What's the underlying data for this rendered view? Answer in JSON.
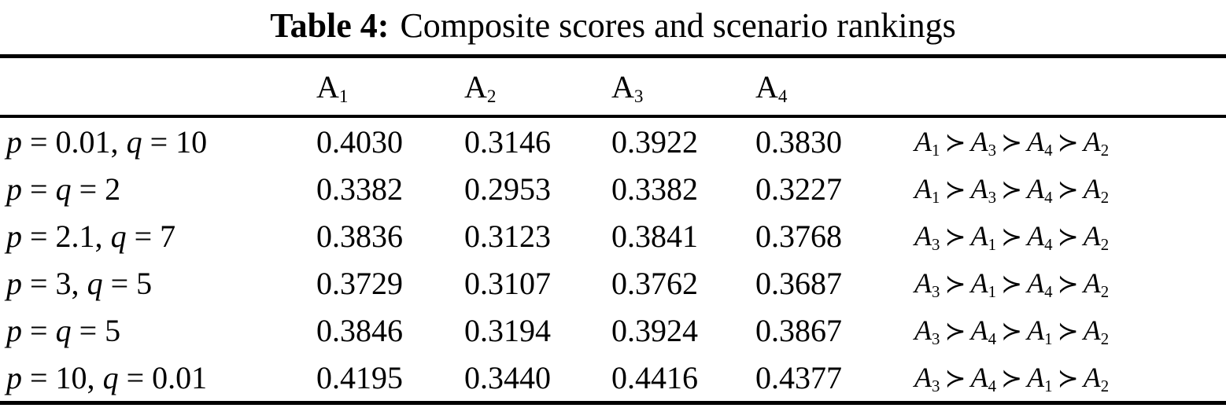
{
  "table": {
    "title_bold": "Table 4:",
    "title_rest": "Composite scores and scenario rankings",
    "succ_symbol": "≻",
    "columns": [
      "A1",
      "A2",
      "A3",
      "A4"
    ],
    "rows": [
      {
        "scenario": "p = 0.01, q = 10",
        "values": [
          "0.4030",
          "0.3146",
          "0.3922",
          "0.3830"
        ],
        "ranking": [
          "A1",
          "A3",
          "A4",
          "A2"
        ]
      },
      {
        "scenario": "p = q = 2",
        "values": [
          "0.3382",
          "0.2953",
          "0.3382",
          "0.3227"
        ],
        "ranking": [
          "A1",
          "A3",
          "A4",
          "A2"
        ]
      },
      {
        "scenario": "p = 2.1, q = 7",
        "values": [
          "0.3836",
          "0.3123",
          "0.3841",
          "0.3768"
        ],
        "ranking": [
          "A3",
          "A1",
          "A4",
          "A2"
        ]
      },
      {
        "scenario": "p = 3, q = 5",
        "values": [
          "0.3729",
          "0.3107",
          "0.3762",
          "0.3687"
        ],
        "ranking": [
          "A3",
          "A1",
          "A4",
          "A2"
        ]
      },
      {
        "scenario": "p = q = 5",
        "values": [
          "0.3846",
          "0.3194",
          "0.3924",
          "0.3867"
        ],
        "ranking": [
          "A3",
          "A4",
          "A1",
          "A2"
        ]
      },
      {
        "scenario": "p = 10, q = 0.01",
        "values": [
          "0.4195",
          "0.3440",
          "0.4416",
          "0.4377"
        ],
        "ranking": [
          "A3",
          "A4",
          "A1",
          "A2"
        ]
      }
    ],
    "colors": {
      "text": "#000000",
      "background": "#ffffff",
      "rule": "#000000"
    }
  },
  "chart_data": {
    "type": "table",
    "title": "Table 4: Composite scores and scenario rankings",
    "categories": [
      "A1",
      "A2",
      "A3",
      "A4"
    ],
    "series": [
      {
        "name": "p = 0.01, q = 10",
        "values": [
          0.403,
          0.3146,
          0.3922,
          0.383
        ],
        "ranking": "A1 > A3 > A4 > A2"
      },
      {
        "name": "p = q = 2",
        "values": [
          0.3382,
          0.2953,
          0.3382,
          0.3227
        ],
        "ranking": "A1 > A3 > A4 > A2"
      },
      {
        "name": "p = 2.1, q = 7",
        "values": [
          0.3836,
          0.3123,
          0.3841,
          0.3768
        ],
        "ranking": "A3 > A1 > A4 > A2"
      },
      {
        "name": "p = 3, q = 5",
        "values": [
          0.3729,
          0.3107,
          0.3762,
          0.3687
        ],
        "ranking": "A3 > A1 > A4 > A2"
      },
      {
        "name": "p = q = 5",
        "values": [
          0.3846,
          0.3194,
          0.3924,
          0.3867
        ],
        "ranking": "A3 > A4 > A1 > A2"
      },
      {
        "name": "p = 10, q = 0.01",
        "values": [
          0.4195,
          0.344,
          0.4416,
          0.4377
        ],
        "ranking": "A3 > A4 > A1 > A2"
      }
    ]
  }
}
